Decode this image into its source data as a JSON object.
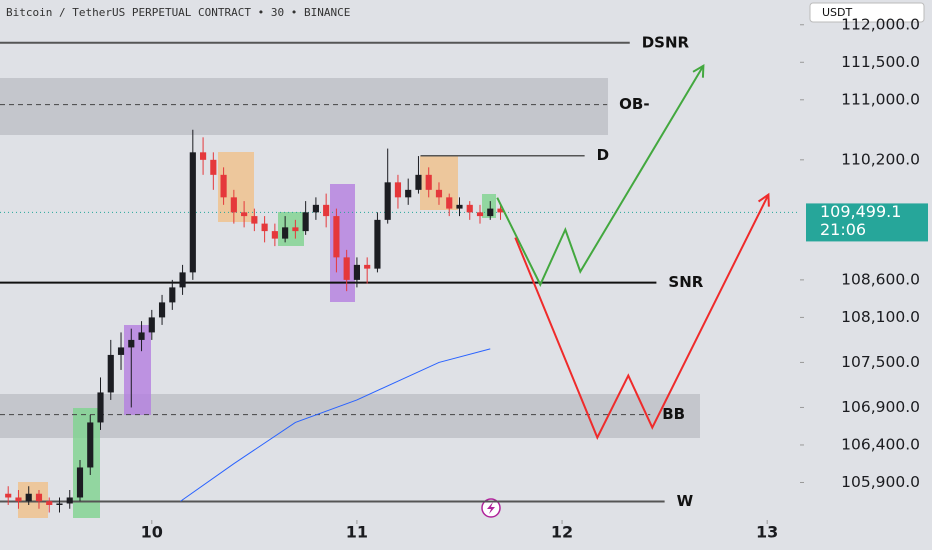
{
  "header": {
    "title": "Bitcoin / TetherUS PERPETUAL CONTRACT • 30 • BINANCE",
    "currency": "USDT"
  },
  "chart_data": {
    "type": "candlestick",
    "xlim": [
      9.26,
      13.16
    ],
    "xticks": [
      10,
      11,
      12,
      13
    ],
    "ylim": [
      105400,
      112330
    ],
    "yticks": [
      {
        "value": 112000,
        "label": "112,000.0"
      },
      {
        "value": 111500,
        "label": "111,500.0"
      },
      {
        "value": 111000,
        "label": "111,000.0"
      },
      {
        "value": 110200,
        "label": "110,200.0"
      },
      {
        "value": 108600,
        "label": "108,600.0"
      },
      {
        "value": 108100,
        "label": "108,100.0"
      },
      {
        "value": 107500,
        "label": "107,500.0"
      },
      {
        "value": 106900,
        "label": "106,900.0"
      },
      {
        "value": 106400,
        "label": "106,400.0"
      },
      {
        "value": 105900,
        "label": "105,900.0"
      }
    ],
    "x": [
      9.3,
      9.35,
      9.4,
      9.45,
      9.5,
      9.55,
      9.6,
      9.65,
      9.7,
      9.75,
      9.8,
      9.85,
      9.9,
      9.95,
      10.0,
      10.05,
      10.1,
      10.15,
      10.2,
      10.25,
      10.3,
      10.35,
      10.4,
      10.45,
      10.5,
      10.55,
      10.6,
      10.65,
      10.7,
      10.75,
      10.8,
      10.85,
      10.9,
      10.95,
      11.0,
      11.05,
      11.1,
      11.15,
      11.2,
      11.25,
      11.3,
      11.35,
      11.4,
      11.45,
      11.5,
      11.55,
      11.6,
      11.65,
      11.7
    ],
    "open": [
      105750,
      105700,
      105650,
      105750,
      105650,
      105600,
      105620,
      105700,
      106100,
      106700,
      107100,
      107600,
      107700,
      107800,
      107900,
      108100,
      108300,
      108500,
      108700,
      110300,
      110200,
      110000,
      109700,
      109500,
      109450,
      109350,
      109250,
      109150,
      109300,
      109250,
      109500,
      109600,
      109450,
      108900,
      108600,
      108800,
      108750,
      109400,
      109900,
      109700,
      109800,
      110000,
      109800,
      109700,
      109550,
      109600,
      109500,
      109450,
      109550
    ],
    "high": [
      105850,
      105800,
      105850,
      105800,
      105700,
      105700,
      105800,
      106200,
      106800,
      107300,
      107800,
      107900,
      107950,
      108050,
      108200,
      108400,
      108600,
      108800,
      110600,
      110500,
      110300,
      110100,
      109800,
      109650,
      109550,
      109450,
      109350,
      109450,
      109400,
      109650,
      109700,
      109750,
      109550,
      109000,
      108900,
      108900,
      109500,
      110350,
      110000,
      109950,
      110250,
      110100,
      109900,
      109750,
      109700,
      109650,
      109600,
      109650,
      109600
    ],
    "low": [
      105600,
      105550,
      105600,
      105550,
      105500,
      105500,
      105550,
      105650,
      106000,
      106600,
      107000,
      107400,
      106900,
      107650,
      107800,
      108000,
      108200,
      108400,
      108600,
      110000,
      109800,
      109600,
      109350,
      109300,
      109250,
      109100,
      109050,
      109100,
      109150,
      109200,
      109400,
      109300,
      108700,
      108450,
      108500,
      108550,
      108700,
      109350,
      109550,
      109600,
      109750,
      109700,
      109600,
      109450,
      109450,
      109400,
      109350,
      109400,
      109400
    ],
    "close": [
      105700,
      105650,
      105750,
      105650,
      105600,
      105620,
      105700,
      106100,
      106700,
      107100,
      107600,
      107700,
      107800,
      107900,
      108100,
      108300,
      108500,
      108700,
      110300,
      110200,
      110000,
      109700,
      109500,
      109450,
      109350,
      109250,
      109150,
      109300,
      109250,
      109500,
      109600,
      109450,
      108900,
      108600,
      108800,
      108750,
      109400,
      109900,
      109700,
      109800,
      110000,
      109800,
      109700,
      109550,
      109600,
      109500,
      109450,
      109550,
      109499.1
    ],
    "up_color": "#1c1d22",
    "down_color": "#e5383b",
    "moving_average": {
      "color": "#2962ff",
      "x": [
        10.14,
        10.4,
        10.7,
        11.0,
        11.2,
        11.4,
        11.65
      ],
      "values": [
        105650,
        106150,
        106700,
        107000,
        107250,
        107500,
        107680
      ]
    },
    "levels": [
      {
        "label": "DSNR",
        "value": 111760,
        "from": 9.26,
        "to": 12.33,
        "color": "#555",
        "width": 2
      },
      {
        "label": "OB-",
        "value": 110935,
        "from": 9.26,
        "to": 12.22,
        "color": "#444",
        "width": 1,
        "dashed": true
      },
      {
        "label": "D",
        "value": 110255,
        "from": 11.31,
        "to": 12.11,
        "color": "#555",
        "width": 1.5
      },
      {
        "label": "SNR",
        "value": 108564,
        "from": 9.26,
        "to": 12.46,
        "color": "#111",
        "width": 2
      },
      {
        "label": "BB",
        "value": 106805,
        "from": 9.26,
        "to": 12.43,
        "color": "#444",
        "width": 1,
        "dashed": true
      },
      {
        "label": "W",
        "value": 105646,
        "from": 9.26,
        "to": 12.5,
        "color": "#555",
        "width": 2
      }
    ],
    "projections": [
      {
        "color": "#43a83f",
        "x": [
          11.684,
          11.894,
          12.016,
          12.089,
          12.689
        ],
        "values": [
          109696,
          108537,
          109270,
          108710,
          111454
        ]
      },
      {
        "color": "#ef2b2b",
        "x": [
          11.772,
          12.172,
          12.323,
          12.44,
          13.006
        ],
        "values": [
          109163,
          106499,
          107325,
          106632,
          109736
        ]
      }
    ],
    "last_price": {
      "value": 109499.1,
      "label": "109,499.1",
      "countdown": "21:06",
      "color": "#26a69a"
    }
  }
}
